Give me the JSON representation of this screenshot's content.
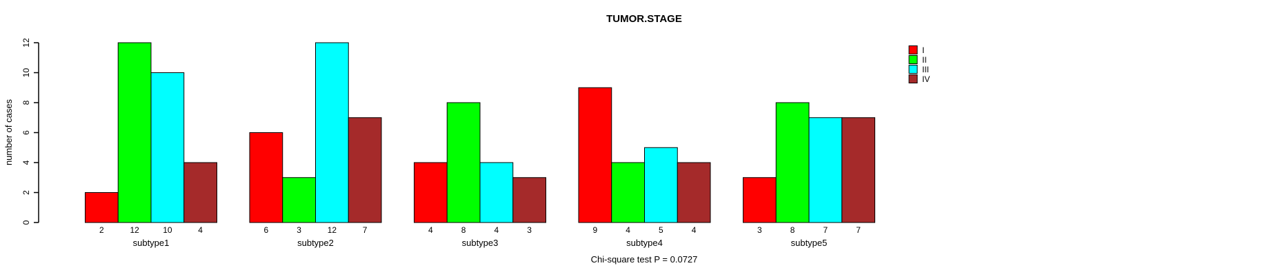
{
  "chart_data": {
    "type": "bar",
    "title": "TUMOR.STAGE",
    "xlabel": "",
    "ylabel": "number of cases",
    "ylim": [
      0,
      12
    ],
    "yticks": [
      0,
      2,
      4,
      6,
      8,
      10,
      12
    ],
    "grid": false,
    "legend_position": "right",
    "categories": [
      "subtype1",
      "subtype2",
      "subtype3",
      "subtype4",
      "subtype5"
    ],
    "series": [
      {
        "name": "I",
        "color": "#FF0000",
        "values": [
          2,
          6,
          4,
          9,
          3
        ]
      },
      {
        "name": "II",
        "color": "#00FF00",
        "values": [
          12,
          3,
          8,
          4,
          8
        ]
      },
      {
        "name": "III",
        "color": "#00FFFF",
        "values": [
          10,
          12,
          4,
          5,
          7
        ]
      },
      {
        "name": "IV",
        "color": "#A52A2A",
        "values": [
          4,
          7,
          3,
          4,
          7
        ]
      }
    ],
    "bar_value_labels_shown": true,
    "annotation": "Chi-square test P = 0.0727"
  }
}
